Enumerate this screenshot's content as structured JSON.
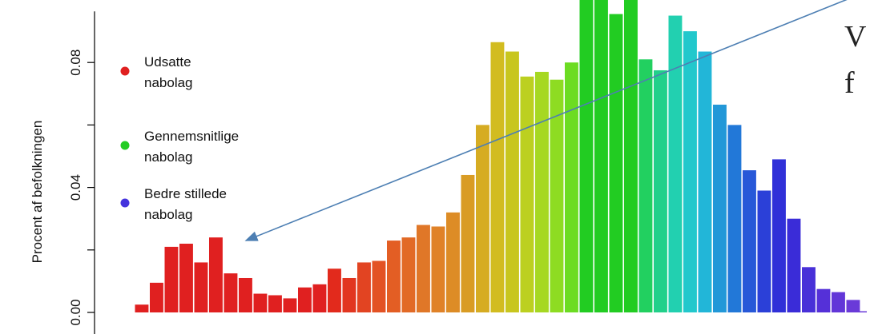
{
  "chart_data": {
    "type": "bar",
    "ylabel": "Procent af befolkningen",
    "ylim": [
      0,
      0.1
    ],
    "yticks": [
      "0.00",
      "0.04",
      "0.08"
    ],
    "ytick_values": [
      0,
      0.04,
      0.08
    ],
    "grid": false,
    "legend_placement": "top-left",
    "legend": [
      {
        "name_lines": [
          "Udsatte",
          "nabolag"
        ],
        "color": "#e02020"
      },
      {
        "name_lines": [
          "Gennemsnitlige",
          "nabolag"
        ],
        "color": "#22cc22"
      },
      {
        "name_lines": [
          "Bedre stillede",
          "nabolag"
        ],
        "color": "#4433dd"
      }
    ],
    "values": [
      0.0025,
      0.0095,
      0.021,
      0.022,
      0.016,
      0.024,
      0.0125,
      0.011,
      0.006,
      0.0055,
      0.0045,
      0.008,
      0.009,
      0.014,
      0.011,
      0.016,
      0.0165,
      0.023,
      0.024,
      0.028,
      0.0275,
      0.032,
      0.044,
      0.06,
      0.0865,
      0.0835,
      0.0755,
      0.077,
      0.0745,
      0.08,
      0.112,
      0.1015,
      0.0955,
      0.117,
      0.081,
      0.0775,
      0.095,
      0.09,
      0.0835,
      0.0665,
      0.06,
      0.0455,
      0.039,
      0.049,
      0.03,
      0.0145,
      0.0075,
      0.0065,
      0.004
    ],
    "colors": [
      "#e02020",
      "#e02020",
      "#e02020",
      "#e02020",
      "#e02020",
      "#e02020",
      "#e02020",
      "#e02020",
      "#e02020",
      "#e02020",
      "#e02020",
      "#e02020",
      "#e02020",
      "#e22a1c",
      "#e23620",
      "#e24422",
      "#e35224",
      "#e35e24",
      "#e26a26",
      "#e07728",
      "#e08228",
      "#dd8c26",
      "#d99c24",
      "#d6ac22",
      "#d2bc20",
      "#c8c61e",
      "#bcd020",
      "#a6d822",
      "#8edc22",
      "#6cdc22",
      "#22cc22",
      "#22cc22",
      "#22cc22",
      "#22cc22",
      "#22d060",
      "#22d08a",
      "#22d0b0",
      "#22c8cc",
      "#22b6d8",
      "#2298d8",
      "#2278d8",
      "#2758d8",
      "#2b40d8",
      "#3030d8",
      "#3a2cd8",
      "#4830d8",
      "#5530d8",
      "#6236d8",
      "#6a3ad8"
    ],
    "annotation": {
      "type": "arrow",
      "color": "#4d7fb3",
      "from_bin": 49,
      "from_value": 0.102,
      "to_bin": 7,
      "to_value": 0.023
    },
    "overlay_text": [
      "V",
      "f"
    ]
  }
}
